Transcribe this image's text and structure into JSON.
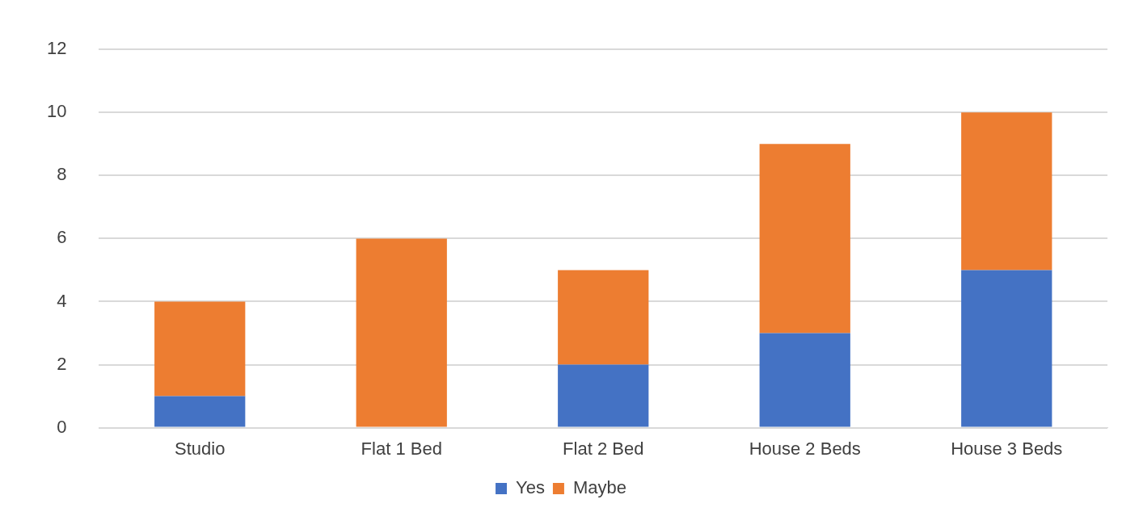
{
  "chart_data": {
    "type": "bar",
    "stacked": true,
    "categories": [
      "Studio",
      "Flat 1 Bed",
      "Flat 2 Bed",
      "House 2 Beds",
      "House 3 Beds"
    ],
    "series": [
      {
        "name": "Yes",
        "color": "#4472c4",
        "values": [
          1,
          0,
          2,
          3,
          5
        ]
      },
      {
        "name": "Maybe",
        "color": "#ed7d31",
        "values": [
          3,
          6,
          3,
          6,
          5
        ]
      }
    ],
    "ylim": [
      0,
      12
    ],
    "yticks": [
      0,
      2,
      4,
      6,
      8,
      10,
      12
    ],
    "grid": "y",
    "legend": "bottom"
  }
}
